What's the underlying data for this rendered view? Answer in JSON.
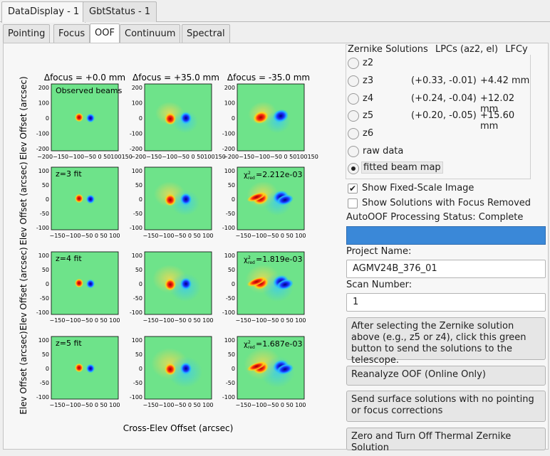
{
  "window_tabs": [
    {
      "label": "DataDisplay - 1",
      "active": true
    },
    {
      "label": "GbtStatus - 1",
      "active": false
    }
  ],
  "sub_tabs": [
    {
      "label": "Pointing",
      "active": false
    },
    {
      "label": "Focus",
      "active": false
    },
    {
      "label": "OOF",
      "active": true
    },
    {
      "label": "Continuum",
      "active": false
    },
    {
      "label": "Spectral Line",
      "active": false
    }
  ],
  "plots": {
    "column_titles": [
      "Δfocus = +0.0 mm",
      "Δfocus = +35.0 mm",
      "Δfocus = -35.0 mm"
    ],
    "row_labels": [
      "Observed beams",
      "z=3 fit",
      "z=4 fit",
      "z=5 fit"
    ],
    "chi_labels": [
      "=2.212e-03",
      "=1.819e-03",
      "=1.687e-03"
    ],
    "chi_symbol": "χ",
    "chi_sub": "red",
    "ylabel": "Elev Offset (arcsec)",
    "xlabel": "Cross-Elev Offset (arcsec)",
    "top_row_yticks": [
      "200",
      "100",
      "0",
      "-100",
      "-200"
    ],
    "other_yticks": [
      "100",
      "50",
      "0",
      "-50",
      "-100"
    ],
    "top_row_xticks": "−200−150−10−5050 0 50100150",
    "top_row_xticks_col": [
      "−200−150−100−50 0 50100150",
      "−200−150−100−50 0 50100150",
      "−200−150−100−50 0 50100150"
    ],
    "other_xticks": "−150−100−50 0 50 100",
    "colors": {
      "background": "#6ee38a",
      "red": "#ff2a10",
      "blue": "#1a30ff",
      "yellow": "#ffd11a",
      "cyan": "#28b7ff"
    }
  },
  "zernike": {
    "headers": [
      "Zernike Solutions",
      "LPCs (az2, el)",
      "LFCy"
    ],
    "rows": [
      {
        "name": "z2",
        "lpc": "",
        "lfc": "",
        "selected": false
      },
      {
        "name": "z3",
        "lpc": "(+0.33, -0.01)",
        "lfc": "+4.42 mm",
        "selected": false
      },
      {
        "name": "z4",
        "lpc": "(+0.24, -0.04)",
        "lfc": "+12.02 mm",
        "selected": false
      },
      {
        "name": "z5",
        "lpc": "(+0.20, -0.05)",
        "lfc": "+15.60 mm",
        "selected": false
      },
      {
        "name": "z6",
        "lpc": "",
        "lfc": "",
        "selected": false
      },
      {
        "name": "raw data",
        "lpc": "",
        "lfc": "",
        "selected": false
      },
      {
        "name": "fitted beam map",
        "lpc": "",
        "lfc": "",
        "selected": true
      }
    ]
  },
  "options": {
    "fixed_scale": {
      "label": "Show Fixed-Scale Image",
      "checked": true
    },
    "focus_removed": {
      "label": "Show Solutions with Focus Removed",
      "checked": false
    }
  },
  "status": {
    "label": "AutoOOF Processing Status: Complete",
    "progress": 1.0,
    "bar_color": "#3a88d8"
  },
  "project": {
    "label": "Project Name:",
    "value": "AGMV24B_376_01"
  },
  "scan": {
    "label": "Scan Number:",
    "value": "1"
  },
  "buttons": {
    "send": "After selecting the Zernike solution above (e.g., z5 or z4), click this green button to send the solutions to the telescope.",
    "reanalyze": "Reanalyze OOF (Online Only)",
    "surface": "Send surface solutions with no pointing or focus corrections",
    "zero": "Zero and Turn Off Thermal Zernike Solution"
  }
}
